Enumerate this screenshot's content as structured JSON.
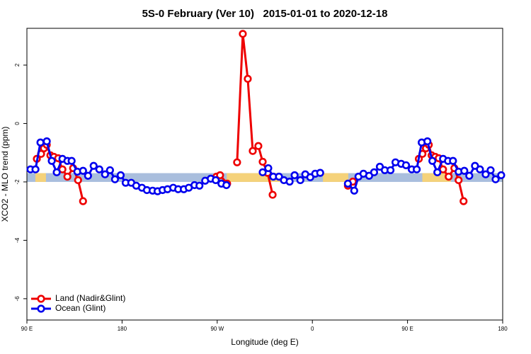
{
  "chart_data": {
    "type": "line",
    "title": "5S-0 February (Ver 10)   2015-01-01 to 2020-12-18",
    "xlabel": "Longitude (deg E)",
    "ylabel": "XCO2 - MLO trend (ppm)",
    "xlim": [
      90,
      540
    ],
    "ylim": [
      -6.73,
      3.26
    ],
    "xticks": [
      {
        "value": 90,
        "label": "90 E"
      },
      {
        "value": 180,
        "label": "180"
      },
      {
        "value": 270,
        "label": "90 W"
      },
      {
        "value": 360,
        "label": "0"
      },
      {
        "value": 450,
        "label": "90 E"
      },
      {
        "value": 540,
        "label": "180"
      }
    ],
    "yticks": [
      2,
      0,
      -2,
      -4,
      -6
    ],
    "legend": "bottom-left",
    "band": {
      "ylim": [
        -2.0,
        -1.7
      ],
      "color": "#a9bedd",
      "segments": [
        {
          "x": [
            98,
            108
          ],
          "color": "#f5d27a"
        },
        {
          "x": [
            279,
            330
          ],
          "color": "#f5d27a"
        },
        {
          "x": [
            370,
            394
          ],
          "color": "#f5d27a"
        },
        {
          "x": [
            464,
            491
          ],
          "color": "#f5d27a"
        }
      ]
    },
    "series": [
      {
        "name": "Land (Nadir&Glint)",
        "color": "#ee0000",
        "x": [
          99.4,
          103.4,
          106.1,
          108.8,
          112.2,
          115.5,
          119.6,
          123.6,
          128.3,
          133.7,
          138.4,
          143.1,
          null,
          269.3,
          272.7,
          279.4,
          null,
          288.8,
          294.2,
          298.9,
          303.6,
          308.9,
          313.0,
          317.7,
          322.4,
          null,
          393.6,
          398.3,
          null,
          460.7,
          464.1,
          467.4,
          470.1,
          472.8,
          476.2,
          479.5,
          483.6,
          488.9,
          494.3,
          498.3,
          503.0
        ],
        "values": [
          -1.21,
          -1.04,
          -0.85,
          -0.73,
          -1.09,
          -1.14,
          -1.19,
          -1.57,
          -1.82,
          -1.53,
          -1.94,
          -2.66,
          null,
          -1.82,
          -1.77,
          -2.06,
          null,
          -1.33,
          3.07,
          1.53,
          -0.94,
          -0.77,
          -1.31,
          -1.69,
          -2.44,
          null,
          -2.13,
          -1.99,
          null,
          -1.21,
          -1.04,
          -0.85,
          -0.73,
          -1.09,
          -1.14,
          -1.19,
          -1.57,
          -1.82,
          -1.53,
          -1.94,
          -2.66
        ]
      },
      {
        "name": "Ocean (Glint)",
        "color": "#0000ee",
        "x": [
          93.4,
          98.1,
          102.8,
          108.8,
          113.5,
          118.2,
          123.6,
          128.3,
          132.3,
          137.7,
          143.1,
          147.8,
          153.1,
          158.5,
          163.9,
          168.6,
          173.3,
          178.7,
          183.4,
          188.7,
          193.4,
          198.8,
          203.5,
          208.9,
          213.6,
          218.3,
          223.0,
          228.4,
          233.1,
          238.4,
          243.1,
          248.5,
          253.2,
          258.6,
          263.9,
          268.6,
          274.0,
          278.7,
          null,
          313.0,
          318.3,
          323.0,
          328.4,
          333.1,
          338.5,
          343.2,
          348.6,
          353.3,
          358.0,
          362.7,
          367.4,
          null,
          393.6,
          399.6,
          403.6,
          408.3,
          413.7,
          418.4,
          423.8,
          428.5,
          433.9,
          438.6,
          444.0,
          448.6,
          454.0,
          458.7,
          463.4,
          468.8,
          473.5,
          478.2,
          483.6,
          488.3,
          493.0,
          498.3,
          503.7,
          508.4,
          513.8,
          518.5,
          523.9,
          528.6,
          533.3,
          538.6
        ],
        "values": [
          -1.57,
          -1.57,
          -0.65,
          -0.61,
          -1.28,
          -1.67,
          -1.21,
          -1.28,
          -1.28,
          -1.65,
          -1.62,
          -1.79,
          -1.45,
          -1.57,
          -1.74,
          -1.6,
          -1.91,
          -1.77,
          -2.03,
          -2.03,
          -2.13,
          -2.2,
          -2.28,
          -2.3,
          -2.32,
          -2.28,
          -2.25,
          -2.2,
          -2.25,
          -2.25,
          -2.2,
          -2.11,
          -2.13,
          -1.96,
          -1.89,
          -1.94,
          -2.06,
          -2.11,
          null,
          -1.67,
          -1.53,
          -1.82,
          -1.82,
          -1.94,
          -1.99,
          -1.77,
          -1.94,
          -1.74,
          -1.84,
          -1.72,
          -1.69,
          null,
          -2.06,
          -2.3,
          -1.82,
          -1.72,
          -1.79,
          -1.67,
          -1.48,
          -1.6,
          -1.6,
          -1.33,
          -1.38,
          -1.43,
          -1.57,
          -1.57,
          -0.65,
          -0.61,
          -1.28,
          -1.67,
          -1.21,
          -1.28,
          -1.28,
          -1.65,
          -1.62,
          -1.79,
          -1.45,
          -1.57,
          -1.74,
          -1.6,
          -1.91,
          -1.77
        ]
      }
    ]
  }
}
